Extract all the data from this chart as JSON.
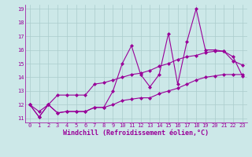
{
  "title": "",
  "xlabel": "Windchill (Refroidissement éolien,°C)",
  "ylabel": "",
  "background_color": "#cce8e8",
  "line_color": "#990099",
  "xlim": [
    -0.5,
    23.5
  ],
  "ylim": [
    10.7,
    19.3
  ],
  "yticks": [
    11,
    12,
    13,
    14,
    15,
    16,
    17,
    18,
    19
  ],
  "xticks": [
    0,
    1,
    2,
    3,
    4,
    5,
    6,
    7,
    8,
    9,
    10,
    11,
    12,
    13,
    14,
    15,
    16,
    17,
    18,
    19,
    20,
    21,
    22,
    23
  ],
  "series1_x": [
    0,
    1,
    2,
    3,
    4,
    5,
    6,
    7,
    8,
    9,
    10,
    11,
    12,
    13,
    14,
    15,
    16,
    17,
    18,
    19,
    20,
    21,
    22,
    23
  ],
  "series1_y": [
    12.0,
    11.1,
    12.0,
    11.4,
    11.5,
    11.5,
    11.5,
    11.8,
    11.8,
    13.0,
    15.0,
    16.3,
    14.2,
    13.3,
    14.2,
    17.2,
    13.5,
    16.6,
    19.0,
    16.0,
    16.0,
    15.9,
    15.2,
    14.9
  ],
  "series2_x": [
    0,
    1,
    2,
    3,
    4,
    5,
    6,
    7,
    8,
    9,
    10,
    11,
    12,
    13,
    14,
    15,
    16,
    17,
    18,
    19,
    20,
    21,
    22,
    23
  ],
  "series2_y": [
    12.0,
    11.5,
    12.0,
    12.7,
    12.7,
    12.7,
    12.7,
    13.5,
    13.6,
    13.8,
    14.0,
    14.2,
    14.3,
    14.5,
    14.8,
    15.0,
    15.3,
    15.5,
    15.6,
    15.8,
    15.9,
    15.9,
    15.5,
    14.1
  ],
  "series3_x": [
    0,
    1,
    2,
    3,
    4,
    5,
    6,
    7,
    8,
    9,
    10,
    11,
    12,
    13,
    14,
    15,
    16,
    17,
    18,
    19,
    20,
    21,
    22,
    23
  ],
  "series3_y": [
    12.0,
    11.1,
    12.0,
    11.4,
    11.5,
    11.5,
    11.5,
    11.8,
    11.8,
    12.0,
    12.3,
    12.4,
    12.5,
    12.5,
    12.8,
    13.0,
    13.2,
    13.5,
    13.8,
    14.0,
    14.1,
    14.2,
    14.2,
    14.2
  ],
  "marker": "D",
  "markersize": 2,
  "linewidth": 0.8,
  "grid_color": "#aacccc",
  "tick_label_color": "#990099",
  "tick_label_size": 5.0,
  "xlabel_size": 6.0
}
